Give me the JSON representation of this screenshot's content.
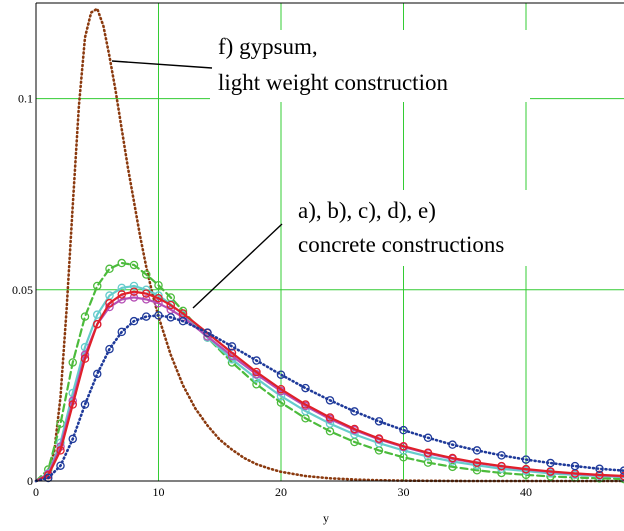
{
  "chart_data": {
    "type": "line",
    "title": "",
    "xlabel": "y",
    "ylabel": "",
    "xlim": [
      0,
      48
    ],
    "ylim": [
      0,
      0.125
    ],
    "x_ticks": [
      0,
      10,
      20,
      30,
      40
    ],
    "y_ticks": [
      0,
      0.05,
      0.1
    ],
    "x_tick_labels": [
      "0",
      "10",
      "20",
      "30",
      "40"
    ],
    "y_tick_labels": [
      "0",
      "0.05",
      "0.1"
    ],
    "grid": true,
    "colors": {
      "grid": "#33cc33",
      "gypsum": "#8b3a0f",
      "blue": "#1f3a9a",
      "red": "#e0202a",
      "cyan": "#66cccc",
      "magenta": "#b54eb5",
      "green": "#4cbb3c"
    },
    "annotations": [
      {
        "lines": [
          "f) gypsum,",
          "light weight construction"
        ]
      },
      {
        "lines": [
          "a), b), c), d), e)",
          "concrete constructions"
        ]
      }
    ],
    "series": [
      {
        "style": "dotted",
        "color": "#8b3a0f",
        "x": [
          0,
          0.5,
          1,
          1.5,
          2,
          2.5,
          3,
          3.5,
          4,
          4.5,
          5,
          5.5,
          6,
          6.5,
          7,
          7.5,
          8,
          8.5,
          9,
          9.5,
          10,
          11,
          12,
          13,
          14,
          15,
          16,
          17,
          18,
          19,
          20,
          22,
          24,
          26,
          28,
          30,
          35,
          40,
          48
        ],
        "y": [
          0,
          0.0004,
          0.002,
          0.008,
          0.022,
          0.045,
          0.072,
          0.098,
          0.116,
          0.1225,
          0.1235,
          0.119,
          0.111,
          0.102,
          0.092,
          0.082,
          0.073,
          0.064,
          0.056,
          0.049,
          0.043,
          0.033,
          0.025,
          0.019,
          0.0145,
          0.0108,
          0.0082,
          0.006,
          0.0044,
          0.0033,
          0.0024,
          0.0013,
          0.0007,
          0.0004,
          0.0002,
          0.0001,
          0,
          0,
          0
        ]
      },
      {
        "style": "dashed",
        "color": "#4cbb3c",
        "x": [
          0,
          1,
          2,
          3,
          4,
          5,
          6,
          7,
          8,
          9,
          10,
          11,
          12,
          14,
          16,
          18,
          20,
          22,
          24,
          26,
          28,
          30,
          32,
          34,
          36,
          38,
          40,
          42,
          44,
          46,
          48
        ],
        "y": [
          0,
          0.003,
          0.015,
          0.031,
          0.043,
          0.051,
          0.0555,
          0.057,
          0.0565,
          0.054,
          0.0512,
          0.048,
          0.0445,
          0.0375,
          0.031,
          0.0253,
          0.0205,
          0.0164,
          0.013,
          0.0102,
          0.008,
          0.0062,
          0.0048,
          0.0037,
          0.0028,
          0.0021,
          0.0016,
          0.0012,
          0.0009,
          0.0007,
          0.0005
        ]
      },
      {
        "style": "solid",
        "color": "#66cccc",
        "x": [
          0,
          1,
          2,
          3,
          4,
          5,
          6,
          7,
          8,
          9,
          10,
          11,
          12,
          14,
          16,
          18,
          20,
          22,
          24,
          26,
          28,
          30,
          32,
          34,
          36,
          38,
          40,
          42,
          44,
          46,
          48
        ],
        "y": [
          0,
          0.002,
          0.01,
          0.023,
          0.035,
          0.0435,
          0.0485,
          0.0505,
          0.051,
          0.05,
          0.0485,
          0.0462,
          0.0435,
          0.0375,
          0.0318,
          0.0268,
          0.0222,
          0.0183,
          0.015,
          0.0122,
          0.0099,
          0.008,
          0.0064,
          0.0051,
          0.0041,
          0.0032,
          0.0026,
          0.002,
          0.0016,
          0.0013,
          0.001
        ]
      },
      {
        "style": "solid",
        "color": "#b54eb5",
        "x": [
          0,
          1,
          2,
          3,
          4,
          5,
          6,
          7,
          8,
          9,
          10,
          11,
          12,
          14,
          16,
          18,
          20,
          22,
          24,
          26,
          28,
          30,
          32,
          34,
          36,
          38,
          40,
          42,
          44,
          46,
          48
        ],
        "y": [
          0,
          0.0018,
          0.009,
          0.021,
          0.033,
          0.041,
          0.0455,
          0.0475,
          0.048,
          0.0475,
          0.0465,
          0.0448,
          0.0428,
          0.0378,
          0.0327,
          0.0279,
          0.0235,
          0.0196,
          0.0162,
          0.0133,
          0.0109,
          0.0089,
          0.0072,
          0.0058,
          0.0047,
          0.0038,
          0.003,
          0.0024,
          0.0019,
          0.0015,
          0.0012
        ]
      },
      {
        "style": "solid",
        "color": "#e0202a",
        "x": [
          0,
          1,
          2,
          3,
          4,
          5,
          6,
          7,
          8,
          9,
          10,
          11,
          12,
          14,
          16,
          18,
          20,
          22,
          24,
          26,
          28,
          30,
          32,
          34,
          36,
          38,
          40,
          42,
          44,
          46,
          48
        ],
        "y": [
          0,
          0.0015,
          0.008,
          0.02,
          0.032,
          0.041,
          0.0465,
          0.0488,
          0.0495,
          0.049,
          0.0478,
          0.046,
          0.0438,
          0.0387,
          0.0335,
          0.0285,
          0.024,
          0.02,
          0.0166,
          0.0136,
          0.0111,
          0.0091,
          0.0074,
          0.006,
          0.0048,
          0.0039,
          0.0031,
          0.0025,
          0.002,
          0.0016,
          0.0013
        ]
      },
      {
        "style": "dotted",
        "color": "#1f3a9a",
        "x": [
          0,
          1,
          2,
          3,
          4,
          5,
          6,
          7,
          8,
          9,
          10,
          11,
          12,
          14,
          16,
          18,
          20,
          22,
          24,
          26,
          28,
          30,
          32,
          34,
          36,
          38,
          40,
          42,
          44,
          46,
          48
        ],
        "y": [
          0,
          0.0008,
          0.004,
          0.011,
          0.02,
          0.028,
          0.0345,
          0.039,
          0.0418,
          0.043,
          0.0433,
          0.0428,
          0.0418,
          0.0388,
          0.0352,
          0.0315,
          0.0278,
          0.0243,
          0.0211,
          0.0182,
          0.0156,
          0.0133,
          0.0113,
          0.0095,
          0.008,
          0.0067,
          0.0056,
          0.0047,
          0.0039,
          0.0032,
          0.0027
        ]
      }
    ]
  }
}
